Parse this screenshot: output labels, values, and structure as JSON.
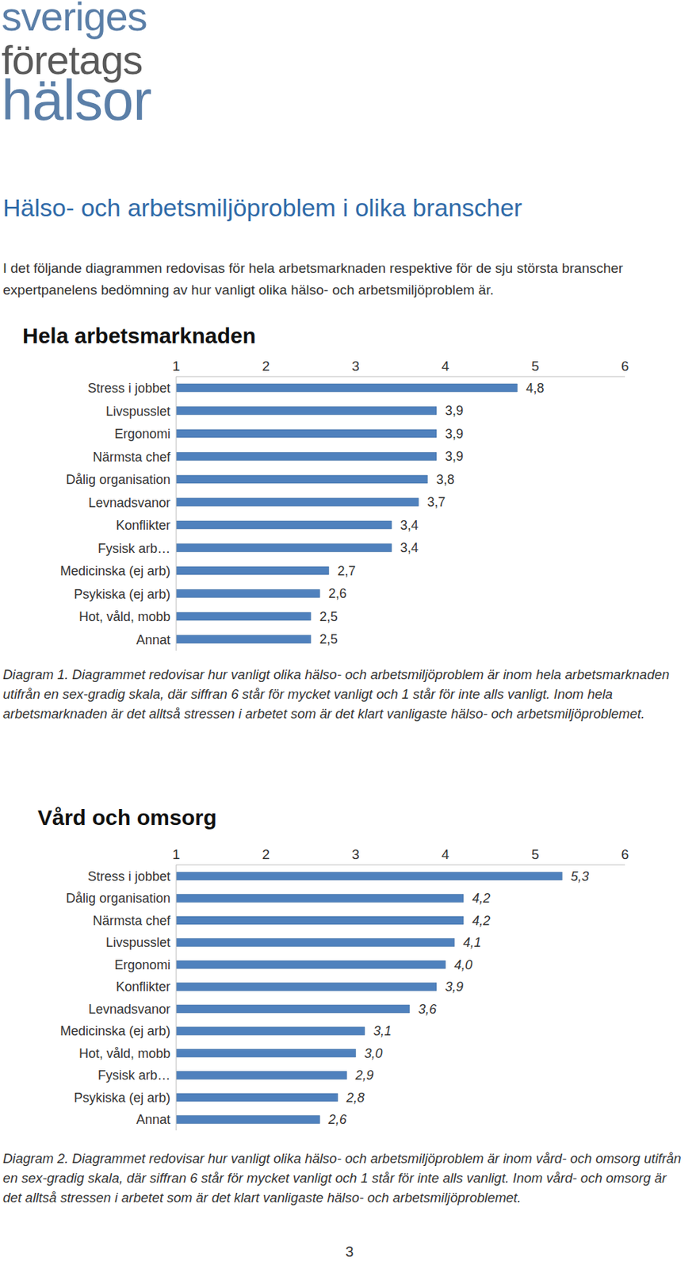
{
  "document": {
    "logo": [
      "sveriges",
      "företags",
      "hälsor"
    ],
    "heading": "Hälso- och arbetsmiljöproblem i olika branscher",
    "intro": "I det följande diagrammen redovisas för hela arbetsmarknaden respektive för de sju största branscher expertpanelens bedömning av hur vanligt olika hälso- och arbetsmiljöproblem är.",
    "captions": [
      "Diagram 1. Diagrammet redovisar hur vanligt olika hälso- och arbetsmiljöproblem är inom hela arbetsmarknaden utifrån en sex-gradig skala, där siffran 6 står för mycket vanligt och 1 står för inte alls vanligt. Inom hela arbetsmarknaden är det alltså stressen i arbetet som är det klart vanligaste hälso- och arbetsmiljöproblemet.",
      "Diagram 2. Diagrammet redovisar hur vanligt olika hälso- och arbetsmiljöproblem är inom vård- och omsorg utifrån en sex-gradig skala, där siffran 6 står för mycket vanligt och 1 står för inte alls vanligt. Inom vård- och omsorg är det alltså stressen i arbetet som är det klart vanligaste hälso- och arbetsmiljöproblemet."
    ],
    "page_number": "3"
  },
  "chart_data": [
    {
      "type": "bar",
      "title": "Hela arbetsmarknaden",
      "orientation": "horizontal",
      "categories": [
        "Stress i jobbet",
        "Livspusslet",
        "Ergonomi",
        "Närmsta chef",
        "Dålig organisation",
        "Levnadsvanor",
        "Konflikter",
        "Fysisk arb…",
        "Medicinska (ej arb)",
        "Psykiska (ej arb)",
        "Hot, våld, mobb",
        "Annat"
      ],
      "values": [
        4.8,
        3.9,
        3.9,
        3.9,
        3.8,
        3.7,
        3.4,
        3.4,
        2.7,
        2.6,
        2.5,
        2.5
      ],
      "value_labels": [
        "4,8",
        "3,9",
        "3,9",
        "3,9",
        "3,8",
        "3,7",
        "3,4",
        "3,4",
        "2,7",
        "2,6",
        "2,5",
        "2,5"
      ],
      "color": "#4f81bd",
      "xlim": [
        1,
        6
      ],
      "xticks": [
        1,
        2,
        3,
        4,
        5,
        6
      ],
      "data_labels": true,
      "grid": false
    },
    {
      "type": "bar",
      "title": "Vård och omsorg",
      "orientation": "horizontal",
      "categories": [
        "Stress i jobbet",
        "Dålig organisation",
        "Närmsta chef",
        "Livspusslet",
        "Ergonomi",
        "Konflikter",
        "Levnadsvanor",
        "Medicinska (ej arb)",
        "Hot, våld, mobb",
        "Fysisk arb…",
        "Psykiska (ej arb)",
        "Annat"
      ],
      "values": [
        5.3,
        4.2,
        4.2,
        4.1,
        4.0,
        3.9,
        3.6,
        3.1,
        3.0,
        2.9,
        2.8,
        2.6
      ],
      "value_labels": [
        "5,3",
        "4,2",
        "4,2",
        "4,1",
        "4,0",
        "3,9",
        "3,6",
        "3,1",
        "3,0",
        "2,9",
        "2,8",
        "2,6"
      ],
      "color": "#4f81bd",
      "xlim": [
        1,
        6
      ],
      "xticks": [
        1,
        2,
        3,
        4,
        5,
        6
      ],
      "data_labels": true,
      "grid": false
    }
  ]
}
